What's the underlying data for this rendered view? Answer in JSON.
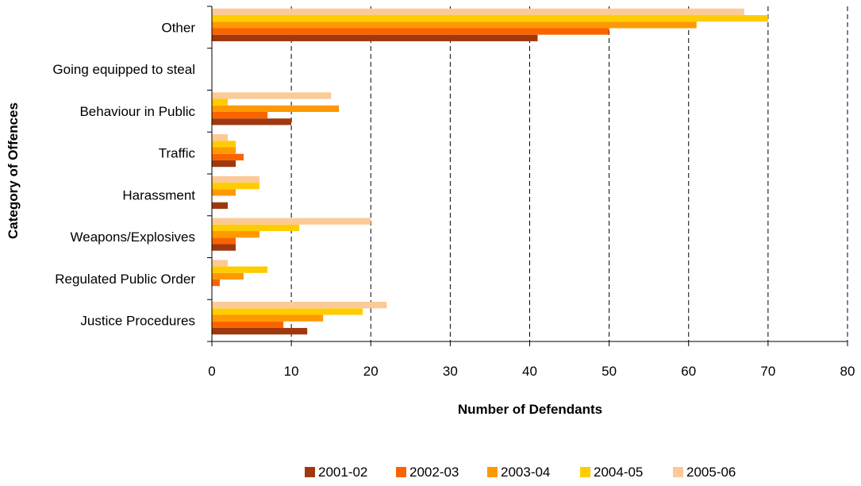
{
  "chart_data": {
    "type": "bar",
    "orientation": "horizontal",
    "xlabel": "Number of Defendants",
    "ylabel": "Category of Offences",
    "xlim": [
      0,
      80
    ],
    "x_ticks": [
      "0",
      "10",
      "20",
      "30",
      "40",
      "50",
      "60",
      "70",
      "80"
    ],
    "grid": "vertical dashed",
    "legend_position": "bottom",
    "categories": [
      "Other",
      "Going equipped to steal",
      "Behaviour in Public",
      "Traffic",
      "Harassment",
      "Weapons/Explosives",
      "Regulated Public Order",
      "Justice Procedures"
    ],
    "series": [
      {
        "name": "2001-02",
        "color": "#a0380f",
        "values": [
          41,
          0,
          10,
          3,
          2,
          3,
          0,
          12
        ]
      },
      {
        "name": "2002-03",
        "color": "#fa6400",
        "values": [
          50,
          0,
          7,
          4,
          0,
          3,
          1,
          9
        ]
      },
      {
        "name": "2003-04",
        "color": "#ff9900",
        "values": [
          61,
          0,
          16,
          3,
          3,
          6,
          4,
          14
        ]
      },
      {
        "name": "2004-05",
        "color": "#ffcc00",
        "values": [
          70,
          0,
          2,
          3,
          6,
          11,
          7,
          19
        ]
      },
      {
        "name": "2005-06",
        "color": "#fcca96",
        "values": [
          67,
          0,
          15,
          2,
          6,
          20,
          2,
          22
        ]
      }
    ]
  }
}
